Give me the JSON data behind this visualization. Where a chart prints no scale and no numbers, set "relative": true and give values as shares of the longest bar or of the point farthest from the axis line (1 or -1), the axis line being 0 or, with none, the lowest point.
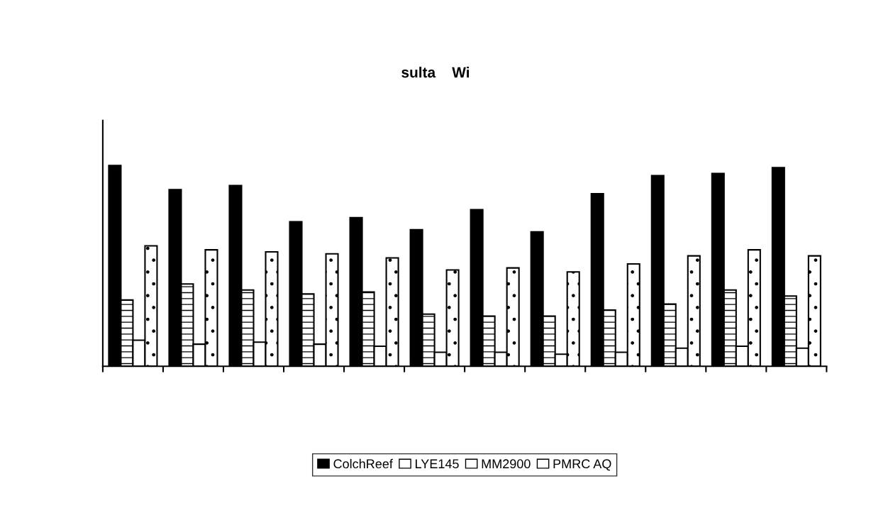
{
  "chart_data": {
    "type": "bar",
    "title": "sulta    Wi",
    "relative": true,
    "categories": [
      null,
      null,
      null,
      null,
      null,
      null,
      null,
      null,
      null,
      null,
      null,
      null
    ],
    "series": [
      {
        "name": "ColchReef",
        "color": "#000000",
        "values": [
          1.0,
          0.88,
          0.9,
          0.72,
          0.74,
          0.68,
          0.78,
          0.67,
          0.86,
          0.95,
          0.96,
          0.99
        ]
      },
      {
        "name": "LYE145",
        "color": "#ffffff",
        "values": [
          0.33,
          0.41,
          0.38,
          0.36,
          0.37,
          0.26,
          0.25,
          0.25,
          0.28,
          0.31,
          0.38,
          0.35
        ]
      },
      {
        "name": "MM2900",
        "color": "#ffffff",
        "values": [
          0.13,
          0.11,
          0.12,
          0.11,
          0.1,
          0.07,
          0.07,
          0.06,
          0.07,
          0.09,
          0.1,
          0.09
        ]
      },
      {
        "name": "PMRC AQ",
        "color": "#ffffff",
        "values": [
          0.6,
          0.58,
          0.57,
          0.56,
          0.54,
          0.48,
          0.49,
          0.47,
          0.51,
          0.55,
          0.58,
          0.55
        ]
      }
    ],
    "legend": "bottom",
    "grid": false
  }
}
